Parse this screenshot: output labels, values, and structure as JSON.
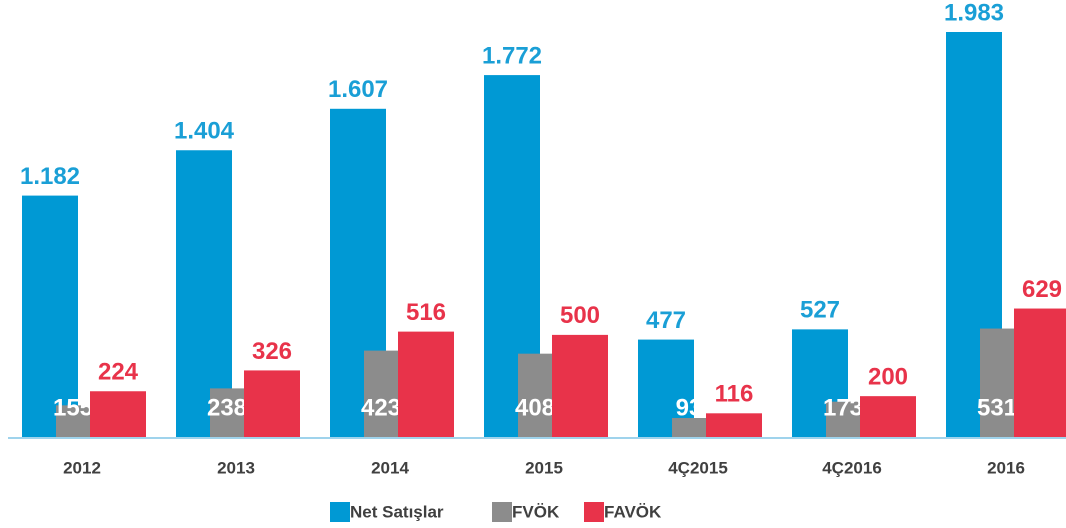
{
  "chart_data": {
    "type": "bar",
    "categories": [
      "2012",
      "2013",
      "2014",
      "2015",
      "4Ç2015",
      "4Ç2016",
      "2016"
    ],
    "series": [
      {
        "name": "Net Satışlar",
        "color": "#0099d4",
        "values": [
          1182,
          1404,
          1607,
          1772,
          477,
          527,
          1983
        ],
        "value_labels": [
          "1.182",
          "1.404",
          "1.607",
          "1.772",
          "477",
          "527",
          "1.983"
        ]
      },
      {
        "name": "FVÖK",
        "color": "#8c8c8c",
        "values": [
          155,
          238,
          423,
          408,
          93,
          173,
          531
        ]
      },
      {
        "name": "FAVÖK",
        "color": "#e8334a",
        "values": [
          224,
          326,
          516,
          500,
          116,
          200,
          629
        ]
      }
    ],
    "legend": "bottom"
  }
}
